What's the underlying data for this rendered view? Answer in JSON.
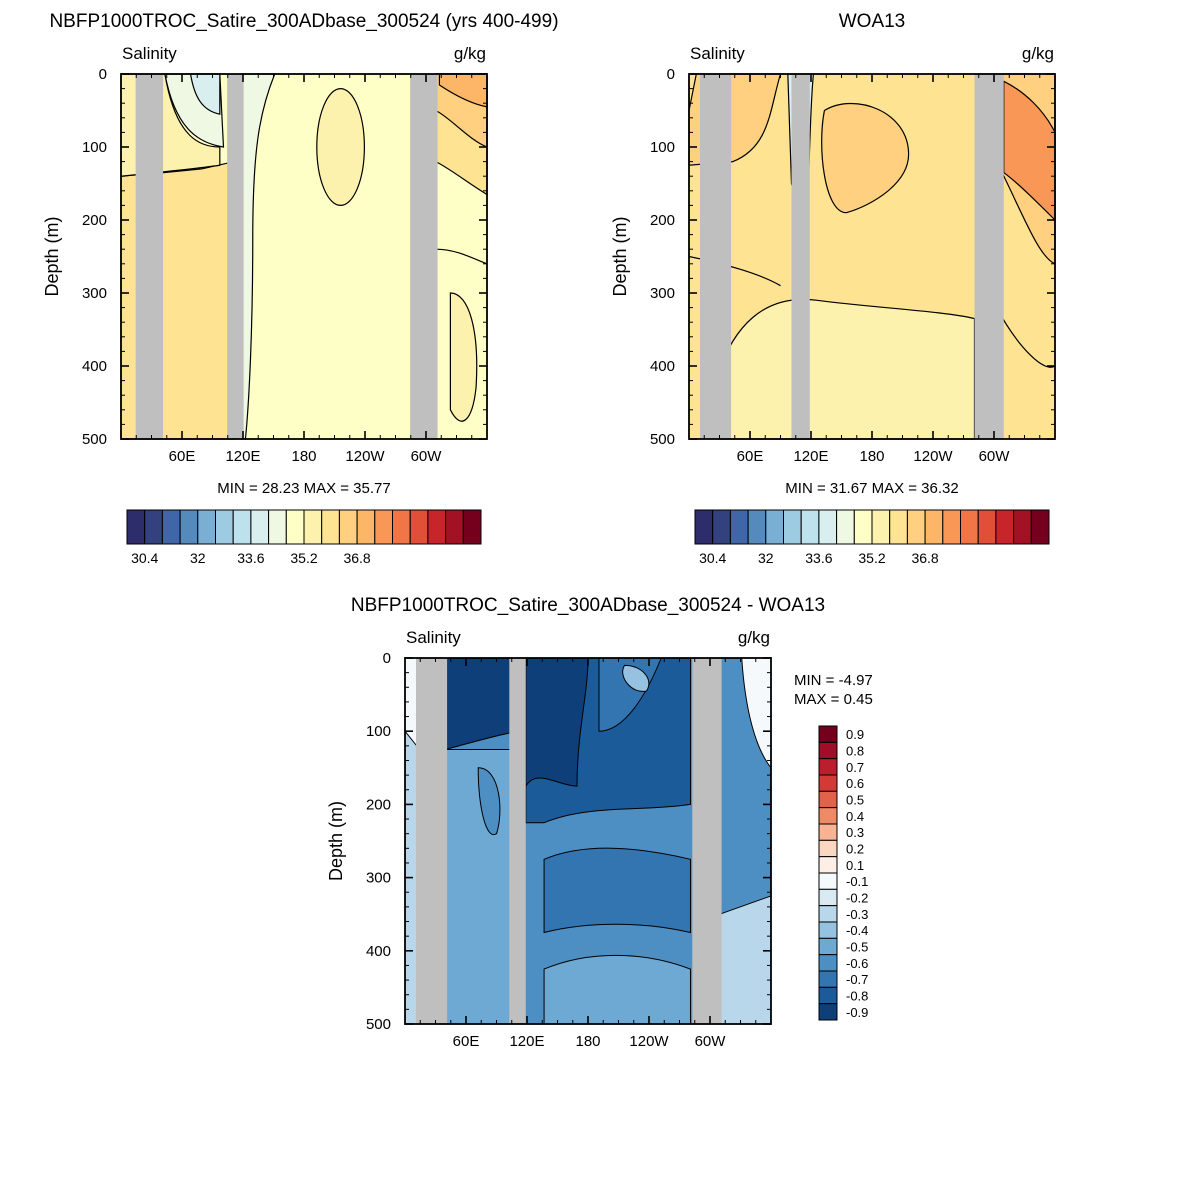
{
  "chart_data": [
    {
      "type": "heatmap",
      "title": "NBFP1000TROC_Satire_300ADbase_300524 (yrs 400-499)",
      "left_label": "Salinity",
      "right_label": "g/kg",
      "ylabel": "Depth (m)",
      "ylim": [
        500,
        0
      ],
      "yticks": [
        "0",
        "100",
        "200",
        "300",
        "400",
        "500"
      ],
      "xticks": [
        "60E",
        "120E",
        "180",
        "120W",
        "60W"
      ],
      "stats": "MIN =  28.23  MAX =  35.77",
      "colorbar_labels": [
        "30.4",
        "32",
        "33.6",
        "35.2",
        "36.8"
      ],
      "colors": [
        "#2e2d6b",
        "#33427f",
        "#3f66a7",
        "#5689bc",
        "#7aaed3",
        "#9dcbe2",
        "#bde2ee",
        "#d9efef",
        "#eff8e2",
        "#feffc6",
        "#fdf1ae",
        "#fee393",
        "#fed07f",
        "#fdb668",
        "#f99856",
        "#f07648",
        "#e05036",
        "#c8242c",
        "#a31224",
        "#75001e"
      ],
      "land_columns": [
        "30E-50E",
        "100E-110E",
        "80W-60W"
      ]
    },
    {
      "type": "heatmap",
      "title": "WOA13",
      "left_label": "Salinity",
      "right_label": "g/kg",
      "ylabel": "Depth (m)",
      "ylim": [
        500,
        0
      ],
      "yticks": [
        "0",
        "100",
        "200",
        "300",
        "400",
        "500"
      ],
      "xticks": [
        "60E",
        "120E",
        "180",
        "120W",
        "60W"
      ],
      "stats": "MIN =  31.67  MAX =  36.32",
      "colorbar_labels": [
        "30.4",
        "32",
        "33.6",
        "35.2",
        "36.8"
      ]
    },
    {
      "type": "heatmap",
      "title": "NBFP1000TROC_Satire_300ADbase_300524 - WOA13",
      "left_label": "Salinity",
      "right_label": "g/kg",
      "ylabel": "Depth (m)",
      "ylim": [
        500,
        0
      ],
      "yticks": [
        "0",
        "100",
        "200",
        "300",
        "400",
        "500"
      ],
      "xticks": [
        "60E",
        "120E",
        "180",
        "120W",
        "60W"
      ],
      "stats_min": "MIN =  -4.97",
      "stats_max": "MAX =   0.45",
      "colorbar_labels": [
        "0.9",
        "0.8",
        "0.7",
        "0.6",
        "0.5",
        "0.4",
        "0.3",
        "0.2",
        "0.1",
        "-0.1",
        "-0.2",
        "-0.3",
        "-0.4",
        "-0.5",
        "-0.6",
        "-0.7",
        "-0.8",
        "-0.9"
      ],
      "colors": [
        "#75001e",
        "#9e0e26",
        "#bd1e2d",
        "#d33a36",
        "#e3604a",
        "#ef8a66",
        "#f7b393",
        "#fbd6c1",
        "#fdeee6",
        "#f5f9fb",
        "#d9eaf3",
        "#b8d7ea",
        "#94c2e0",
        "#6ea9d3",
        "#4e8fc3",
        "#3275b1",
        "#1c5b9a",
        "#0f3f78"
      ]
    }
  ]
}
